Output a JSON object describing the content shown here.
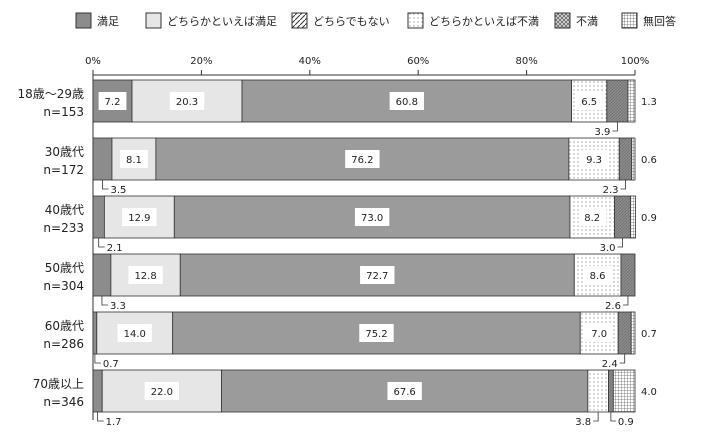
{
  "chart_data": {
    "type": "bar",
    "orientation": "horizontal",
    "stacked": true,
    "xlim": [
      0,
      100
    ],
    "x_ticks": [
      "0%",
      "20%",
      "40%",
      "60%",
      "80%",
      "100%"
    ],
    "legend_position": "top",
    "categories": [
      {
        "label": "18歳～29歳",
        "n": "n=153"
      },
      {
        "label": "30歳代",
        "n": "n=172"
      },
      {
        "label": "40歳代",
        "n": "n=233"
      },
      {
        "label": "50歳代",
        "n": "n=304"
      },
      {
        "label": "60歳代",
        "n": "n=286"
      },
      {
        "label": "70歳以上",
        "n": "n=346"
      }
    ],
    "series": [
      {
        "name": "満足",
        "values": [
          7.2,
          3.5,
          2.1,
          3.3,
          0.7,
          1.7
        ],
        "labels": [
          "7.2",
          "3.5",
          "2.1",
          "3.3",
          "0.7",
          "1.7"
        ]
      },
      {
        "name": "どちらかといえば満足",
        "values": [
          20.3,
          8.1,
          12.9,
          12.8,
          14.0,
          22.0
        ],
        "labels": [
          "20.3",
          "8.1",
          "12.9",
          "12.8",
          "14.0",
          "22.0"
        ]
      },
      {
        "name": "どちらでもない",
        "values": [
          60.8,
          76.2,
          73.0,
          72.7,
          75.2,
          67.6
        ],
        "labels": [
          "60.8",
          "76.2",
          "73.0",
          "72.7",
          "75.2",
          "67.6"
        ]
      },
      {
        "name": "どちらかといえば不満",
        "values": [
          6.5,
          9.3,
          8.2,
          8.6,
          7.0,
          3.8
        ],
        "labels": [
          "6.5",
          "9.3",
          "8.2",
          "8.6",
          "7.0",
          "3.8"
        ]
      },
      {
        "name": "不満",
        "values": [
          3.9,
          2.3,
          3.0,
          2.6,
          2.4,
          0.9
        ],
        "labels": [
          "3.9",
          "2.3",
          "3.0",
          "2.6",
          "2.4",
          "0.9"
        ]
      },
      {
        "name": "無回答",
        "values": [
          1.3,
          0.6,
          0.9,
          0.0,
          0.7,
          4.0
        ],
        "labels": [
          "1.3",
          "0.6",
          "0.9",
          "",
          "0.7",
          "4.0"
        ]
      }
    ],
    "series_colors": [
      "#8c8c8c",
      "#e6e6e6",
      "#9b9b9b",
      "#ffffff",
      "#7d7d7d",
      "#c4c4c4"
    ]
  }
}
